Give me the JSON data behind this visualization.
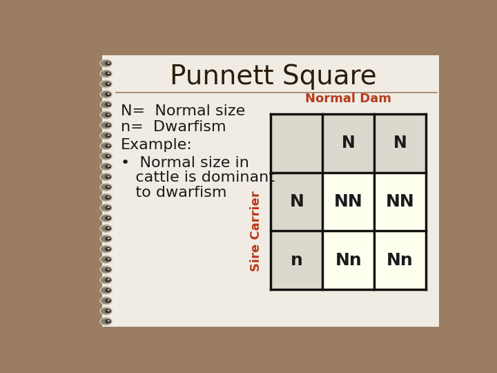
{
  "title": "Punnett Square",
  "title_fontsize": 28,
  "title_color": "#2b1d0e",
  "outer_bg": "#9b7d62",
  "page_bg": "#f0ece4",
  "text_fontsize": 16,
  "text_color": "#1a1a1a",
  "table_label_top": "Normal Dam",
  "table_label_left": "Sire Carrier",
  "table_label_color": "#b83a1a",
  "table_label_fontsize": 13,
  "cell_bg_header": "#ddd8ce",
  "cell_bg_data": "#fffff0",
  "grid_color": "#111111",
  "header_row": [
    "",
    "N",
    "N"
  ],
  "data_rows": [
    [
      "N",
      "NN",
      "NN"
    ],
    [
      "n",
      "Nn",
      "Nn"
    ]
  ],
  "header_fontsize": 17,
  "cell_fontsize": 18,
  "cell_color": "#1a1a1a",
  "hr_color": "#9b7d62",
  "spiral_wire_color": "#c8c0b0",
  "spiral_dot_color": "#3a3530",
  "spiral_hole_color": "#f0ece4"
}
